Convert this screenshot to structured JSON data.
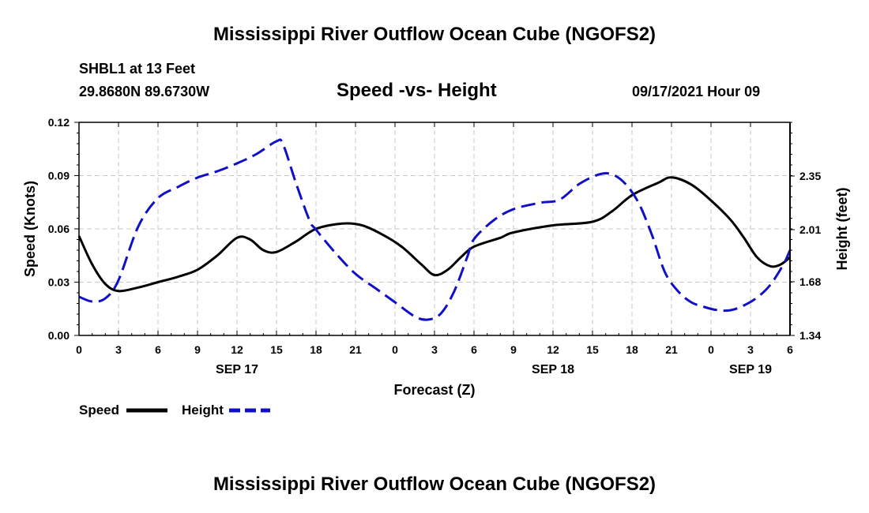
{
  "header": {
    "title": "Mississippi River Outflow Ocean Cube (NGOFS2)",
    "station": "SHBL1 at 13 Feet",
    "coords": "29.8680N  89.6730W",
    "date": "09/17/2021 Hour 09"
  },
  "footer": {
    "title": "Mississippi River Outflow Ocean Cube (NGOFS2)"
  },
  "colors": {
    "speed": "#000000",
    "height": "#1010c8",
    "grid": "#c8c8c8"
  },
  "chart_data": {
    "type": "line",
    "title": "Speed -vs- Height",
    "xlabel": "Forecast (Z)",
    "ylabel_left": "Speed (Knots)",
    "ylabel_right": "Height (feet)",
    "x_range_hours": [
      0,
      54
    ],
    "x_ticks": [
      {
        "h": 0,
        "label": "0"
      },
      {
        "h": 3,
        "label": "3"
      },
      {
        "h": 6,
        "label": "6"
      },
      {
        "h": 9,
        "label": "9"
      },
      {
        "h": 12,
        "label": "12"
      },
      {
        "h": 15,
        "label": "15"
      },
      {
        "h": 18,
        "label": "18"
      },
      {
        "h": 21,
        "label": "21"
      },
      {
        "h": 24,
        "label": "0"
      },
      {
        "h": 27,
        "label": "3"
      },
      {
        "h": 30,
        "label": "6"
      },
      {
        "h": 33,
        "label": "9"
      },
      {
        "h": 36,
        "label": "12"
      },
      {
        "h": 39,
        "label": "15"
      },
      {
        "h": 42,
        "label": "18"
      },
      {
        "h": 45,
        "label": "21"
      },
      {
        "h": 48,
        "label": "0"
      },
      {
        "h": 51,
        "label": "3"
      },
      {
        "h": 54,
        "label": "6"
      }
    ],
    "day_labels": [
      {
        "h": 12,
        "label": "SEP 17"
      },
      {
        "h": 36,
        "label": "SEP 18"
      },
      {
        "h": 51,
        "label": "SEP 19"
      }
    ],
    "left_axis": {
      "min": 0,
      "max": 0.12,
      "ticks": [
        "0.00",
        "0.03",
        "0.06",
        "0.09",
        "0.12"
      ]
    },
    "right_axis": {
      "min": 1.34,
      "max": 2.69,
      "ticks": [
        "1.34",
        "1.68",
        "2.01",
        "2.35"
      ]
    },
    "grid": true,
    "legend": {
      "position": "bottom-left",
      "speed_label": "Speed",
      "height_label": "Height"
    },
    "series": [
      {
        "name": "Speed",
        "axis": "left",
        "style": "solid",
        "points": [
          [
            0,
            0.056
          ],
          [
            1,
            0.04
          ],
          [
            2,
            0.029
          ],
          [
            3,
            0.025
          ],
          [
            4.5,
            0.027
          ],
          [
            6,
            0.03
          ],
          [
            7.5,
            0.033
          ],
          [
            9,
            0.037
          ],
          [
            10.5,
            0.045
          ],
          [
            12,
            0.055
          ],
          [
            13,
            0.054
          ],
          [
            14,
            0.048
          ],
          [
            15,
            0.047
          ],
          [
            16.5,
            0.053
          ],
          [
            18,
            0.06
          ],
          [
            20,
            0.063
          ],
          [
            21.5,
            0.062
          ],
          [
            23,
            0.057
          ],
          [
            24.5,
            0.05
          ],
          [
            26,
            0.04
          ],
          [
            27,
            0.034
          ],
          [
            28,
            0.037
          ],
          [
            29,
            0.044
          ],
          [
            30,
            0.05
          ],
          [
            32,
            0.055
          ],
          [
            33,
            0.058
          ],
          [
            36,
            0.062
          ],
          [
            39,
            0.064
          ],
          [
            40.5,
            0.07
          ],
          [
            42,
            0.079
          ],
          [
            44,
            0.086
          ],
          [
            45,
            0.089
          ],
          [
            46.5,
            0.085
          ],
          [
            48,
            0.076
          ],
          [
            49.5,
            0.065
          ],
          [
            50.5,
            0.055
          ],
          [
            51.5,
            0.044
          ],
          [
            52.5,
            0.039
          ],
          [
            53.3,
            0.04
          ],
          [
            54,
            0.044
          ]
        ]
      },
      {
        "name": "Height",
        "axis": "right",
        "style": "dashed",
        "points": [
          [
            0,
            1.585
          ],
          [
            1,
            1.555
          ],
          [
            2,
            1.575
          ],
          [
            3,
            1.69
          ],
          [
            4.5,
            2.03
          ],
          [
            6,
            2.21
          ],
          [
            7.5,
            2.28
          ],
          [
            9,
            2.34
          ],
          [
            10.5,
            2.38
          ],
          [
            12,
            2.43
          ],
          [
            13.5,
            2.49
          ],
          [
            15,
            2.57
          ],
          [
            15.5,
            2.55
          ],
          [
            16.5,
            2.3
          ],
          [
            17.5,
            2.07
          ],
          [
            18,
            2.01
          ],
          [
            19.5,
            1.86
          ],
          [
            21,
            1.73
          ],
          [
            22.5,
            1.64
          ],
          [
            24,
            1.55
          ],
          [
            25.5,
            1.46
          ],
          [
            26.5,
            1.44
          ],
          [
            27.5,
            1.48
          ],
          [
            28.5,
            1.62
          ],
          [
            29.5,
            1.84
          ],
          [
            30,
            1.95
          ],
          [
            31.5,
            2.07
          ],
          [
            33,
            2.14
          ],
          [
            35,
            2.18
          ],
          [
            36.5,
            2.2
          ],
          [
            38,
            2.3
          ],
          [
            39.5,
            2.36
          ],
          [
            40.5,
            2.36
          ],
          [
            41.5,
            2.3
          ],
          [
            42.5,
            2.18
          ],
          [
            43.5,
            1.98
          ],
          [
            44.5,
            1.74
          ],
          [
            45.5,
            1.62
          ],
          [
            46.5,
            1.55
          ],
          [
            47.5,
            1.52
          ],
          [
            48.5,
            1.5
          ],
          [
            49.5,
            1.5
          ],
          [
            50.5,
            1.53
          ],
          [
            51.5,
            1.58
          ],
          [
            52.5,
            1.66
          ],
          [
            53.5,
            1.79
          ],
          [
            54,
            1.88
          ]
        ]
      }
    ]
  }
}
